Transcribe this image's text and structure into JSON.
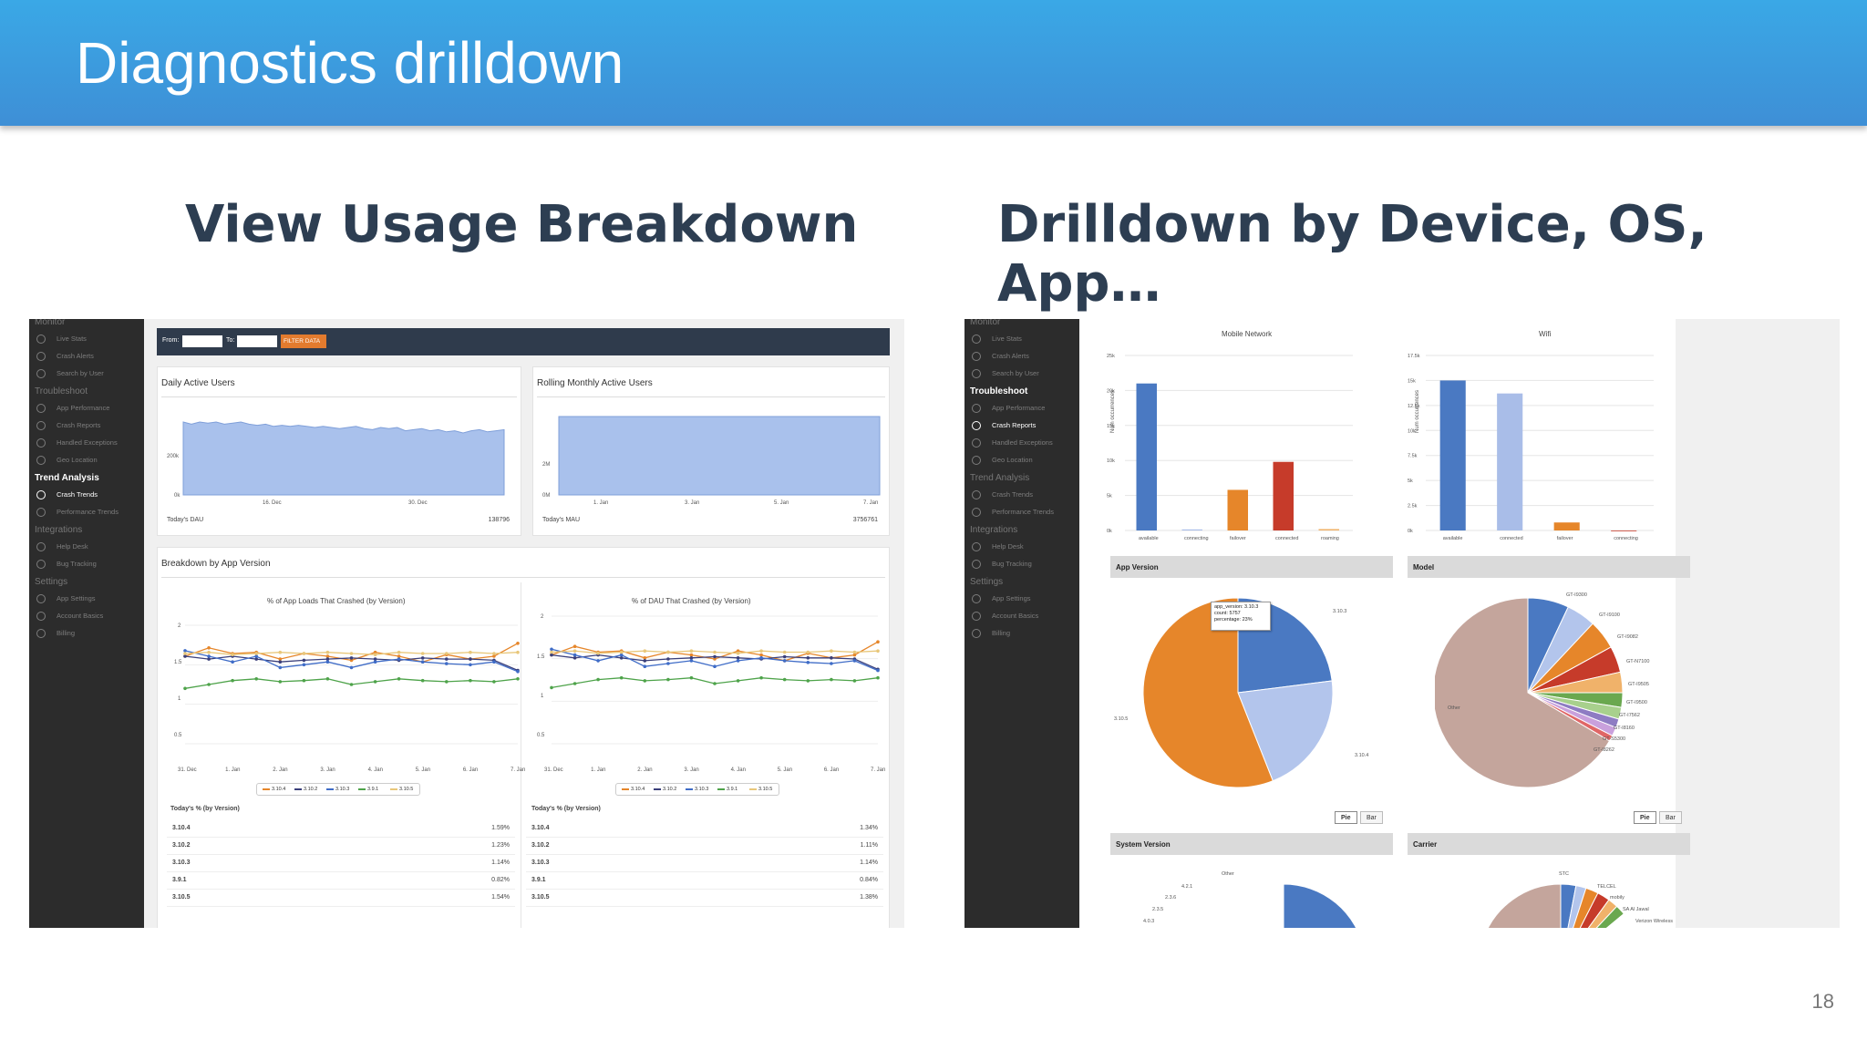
{
  "slide": {
    "title": "Diagnostics drilldown",
    "left_heading": "View Usage Breakdown",
    "right_heading": "Drilldown by Device, OS, App…",
    "page_number": "18"
  },
  "sidebar": {
    "items": [
      {
        "label": "Monitor",
        "section": true
      },
      {
        "label": "Live Stats",
        "icon": "clock-icon"
      },
      {
        "label": "Crash Alerts",
        "icon": "bell-icon"
      },
      {
        "label": "Search by User",
        "icon": "search-icon"
      },
      {
        "label": "Troubleshoot",
        "section": true
      },
      {
        "label": "App Performance",
        "icon": "cloud-icon"
      },
      {
        "label": "Crash Reports",
        "icon": "warning-icon"
      },
      {
        "label": "Handled Exceptions",
        "icon": "flask-icon"
      },
      {
        "label": "Geo Location",
        "icon": "globe-icon"
      },
      {
        "label": "Trend Analysis",
        "section": true
      },
      {
        "label": "Crash Trends",
        "icon": "chart-icon"
      },
      {
        "label": "Performance Trends",
        "icon": "trend-icon"
      },
      {
        "label": "Integrations",
        "section": true
      },
      {
        "label": "Help Desk",
        "icon": "chat-icon"
      },
      {
        "label": "Bug Tracking",
        "icon": "bug-icon"
      },
      {
        "label": "Settings",
        "section": true
      },
      {
        "label": "App Settings",
        "icon": "phone-icon"
      },
      {
        "label": "Account Basics",
        "icon": "gear-icon"
      },
      {
        "label": "Billing",
        "icon": "card-icon"
      }
    ]
  },
  "left_shot": {
    "filter": {
      "from_label": "From:",
      "to_label": "To:",
      "button": "FILTER DATA"
    },
    "dau": {
      "title": "Daily Active Users",
      "footer_label": "Today's DAU",
      "footer_value": "138796",
      "y_ticks": [
        "200k",
        "0k"
      ],
      "x_ticks": [
        "16. Dec",
        "30. Dec"
      ]
    },
    "mau": {
      "title": "Rolling Monthly Active Users",
      "footer_label": "Today's MAU",
      "footer_value": "3756761",
      "y_ticks": [
        "2M",
        "0M"
      ],
      "x_ticks": [
        "1. Jan",
        "3. Jan",
        "5. Jan",
        "7. Jan"
      ]
    },
    "breakdown_title": "Breakdown by App Version",
    "chart1_title": "% of App Loads That Crashed (by Version)",
    "chart2_title": "% of DAU That Crashed (by Version)",
    "chart1_y": [
      "2",
      "1.5",
      "1",
      "0.5"
    ],
    "chart2_y": [
      "2",
      "1.5",
      "1",
      "0.5"
    ],
    "x_ticks": [
      "31. Dec",
      "1. Jan",
      "2. Jan",
      "3. Jan",
      "4. Jan",
      "5. Jan",
      "6. Jan",
      "7. Jan"
    ],
    "legend": [
      "3.10.4",
      "3.10.2",
      "3.10.3",
      "3.9.1",
      "3.10.5"
    ],
    "table1_title": "Today's % (by Version)",
    "table1": [
      {
        "v": "3.10.4",
        "p": "1.59%"
      },
      {
        "v": "3.10.2",
        "p": "1.23%"
      },
      {
        "v": "3.10.3",
        "p": "1.14%"
      },
      {
        "v": "3.9.1",
        "p": "0.82%"
      },
      {
        "v": "3.10.5",
        "p": "1.54%"
      }
    ],
    "table2_title": "Today's % (by Version)",
    "table2": [
      {
        "v": "3.10.4",
        "p": "1.34%"
      },
      {
        "v": "3.10.2",
        "p": "1.11%"
      },
      {
        "v": "3.10.3",
        "p": "1.14%"
      },
      {
        "v": "3.9.1",
        "p": "0.84%"
      },
      {
        "v": "3.10.5",
        "p": "1.38%"
      }
    ]
  },
  "right_shot": {
    "mobile_network": {
      "title": "Mobile Network",
      "y_label": "Num occurrences",
      "y_ticks": [
        "25k",
        "20k",
        "15k",
        "10k",
        "5k",
        "0k"
      ],
      "categories": [
        "available",
        "connecting",
        "failover",
        "connected",
        "roaming"
      ],
      "values": [
        21000,
        150,
        5800,
        9800,
        200
      ]
    },
    "wifi": {
      "title": "Wifi",
      "y_label": "Num occurrences",
      "y_ticks": [
        "17.5k",
        "15k",
        "12.5k",
        "10k",
        "7.5k",
        "5k",
        "2.5k",
        "0k"
      ],
      "categories": [
        "available",
        "connected",
        "failover",
        "connecting"
      ],
      "values": [
        15000,
        13700,
        800,
        0
      ]
    },
    "app_version_head": "App Version",
    "model_head": "Model",
    "system_version_head": "System Version",
    "carrier_head": "Carrier",
    "tooltip": [
      "app_version: 3.10.3",
      "count: 5757",
      "percentage: 23%"
    ],
    "app_version_labels": [
      "3.10.3",
      "3.10.5",
      "3.10.4"
    ],
    "model_labels": [
      "GT-I9300",
      "GT-I9100",
      "GT-I9082",
      "GT-N7100",
      "GT-I9505",
      "GT-I9500",
      "GT-I7562",
      "GT-I8160",
      "GT-S5300",
      "GT-I8262",
      "Other"
    ],
    "system_labels": [
      "Other",
      "4.2.1",
      "2.3.6",
      "2.3.5",
      "4.0.3"
    ],
    "carrier_labels": [
      "STC",
      "TELCEL",
      "mobily",
      "SA Al Jawal",
      "Verizon Wireless"
    ],
    "pie_button": "Pie",
    "bar_button": "Bar"
  },
  "colors": {
    "banner": "#3aa8e6",
    "heading": "#2d3e52",
    "orange": "#e6862a",
    "blue": "#4a79c2",
    "lightblue": "#a9bde8",
    "red": "#c63b2a",
    "tan": "#c4a59c"
  }
}
